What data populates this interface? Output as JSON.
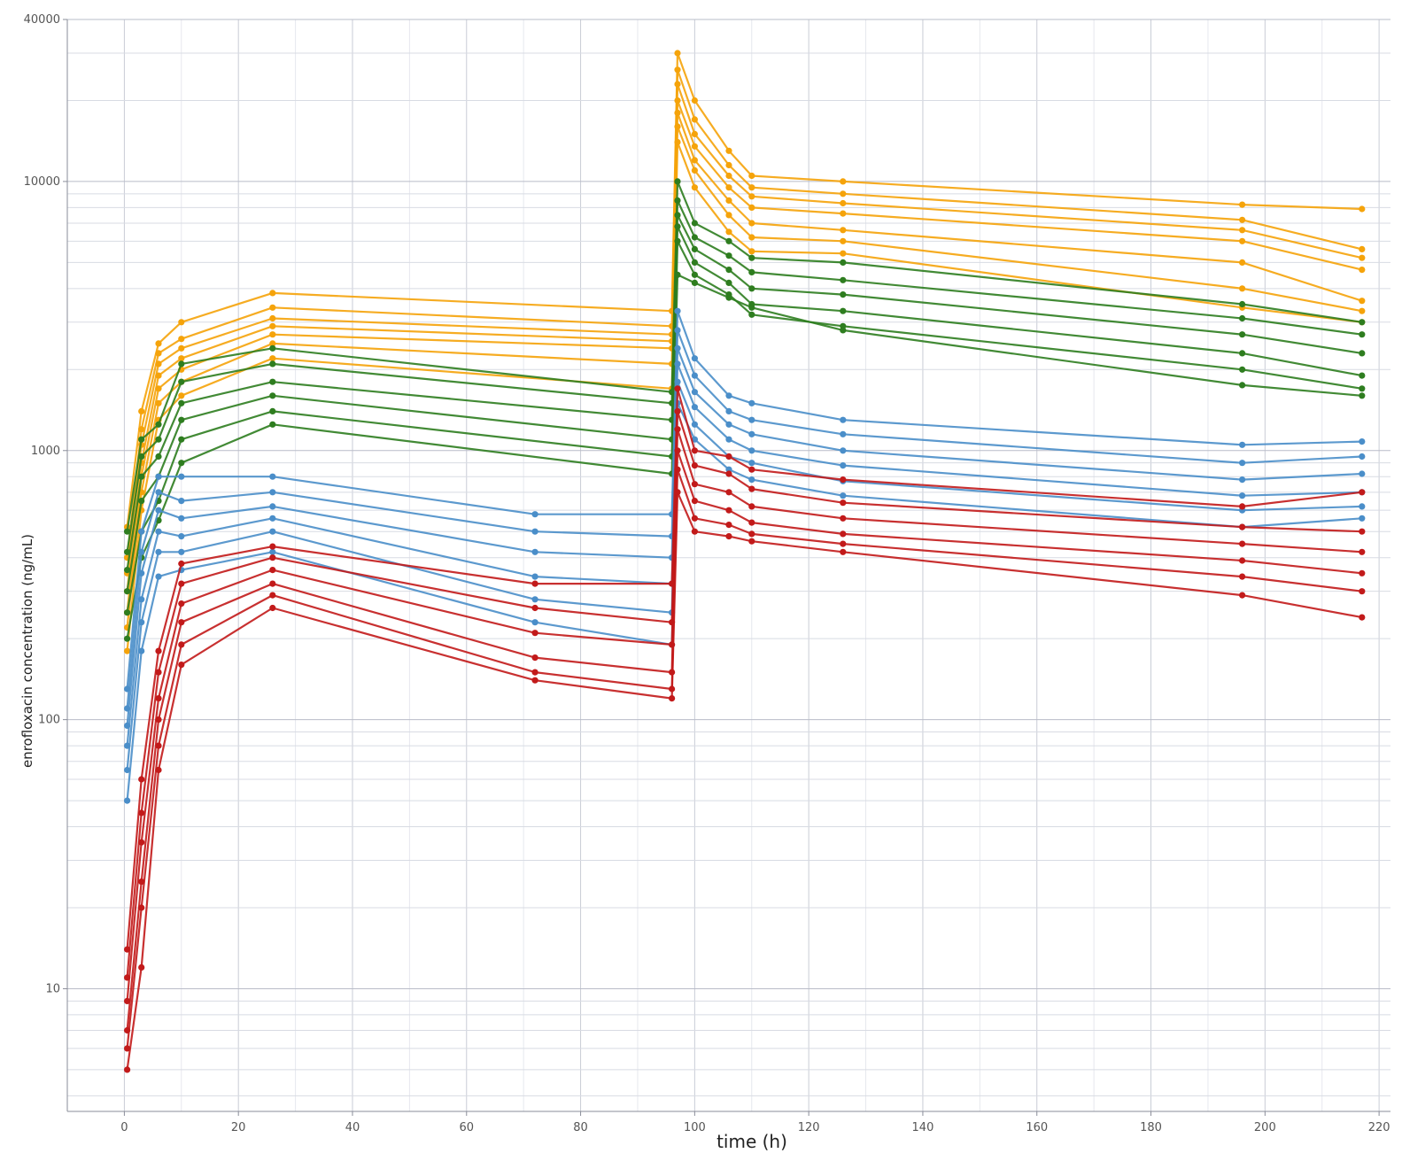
{
  "chart_data": {
    "type": "line",
    "title": "",
    "xlabel": "time (h)",
    "ylabel": "enrofloxacin concentration (ng/mL)",
    "xlim": [
      -10,
      222
    ],
    "ylim": [
      3.5,
      40000
    ],
    "y_scale": "log",
    "grid": true,
    "legend": "none",
    "x_ticks": [
      "0",
      "20",
      "40",
      "60",
      "80",
      "100",
      "120",
      "140",
      "160",
      "180",
      "200",
      "220"
    ],
    "x_tick_values": [
      0,
      20,
      40,
      60,
      80,
      100,
      120,
      140,
      160,
      180,
      200,
      220
    ],
    "y_ticks": [
      "40000",
      "10000",
      "1000",
      "100",
      "10"
    ],
    "y_tick_values": [
      40000,
      10000,
      1000,
      100,
      10
    ],
    "colors": {
      "orange": "#f5a30a",
      "green": "#2e7d1f",
      "blue": "#4a8ec9",
      "red": "#c21a1a"
    },
    "series": [
      {
        "color": "orange",
        "x": [
          0.5,
          3,
          6,
          10,
          26,
          96,
          97,
          100,
          106,
          110,
          126,
          196,
          217
        ],
        "y": [
          520,
          1400,
          2500,
          3000,
          3850,
          3300,
          30000,
          20000,
          13000,
          10500,
          10000,
          8200,
          7900
        ]
      },
      {
        "color": "orange",
        "x": [
          0.5,
          3,
          6,
          10,
          26,
          96,
          97,
          100,
          106,
          110,
          126,
          196,
          217
        ],
        "y": [
          400,
          1200,
          2300,
          2600,
          3400,
          2900,
          26000,
          17000,
          11500,
          9500,
          9000,
          7200,
          5600
        ]
      },
      {
        "color": "orange",
        "x": [
          0.5,
          3,
          6,
          10,
          26,
          96,
          97,
          100,
          106,
          110,
          126,
          196,
          217
        ],
        "y": [
          350,
          1050,
          2100,
          2400,
          3100,
          2700,
          23000,
          15000,
          10500,
          8800,
          8300,
          6600,
          5200
        ]
      },
      {
        "color": "orange",
        "x": [
          0.5,
          3,
          6,
          10,
          26,
          96,
          97,
          100,
          106,
          110,
          126,
          196,
          217
        ],
        "y": [
          300,
          900,
          1900,
          2200,
          2900,
          2550,
          20000,
          13500,
          9500,
          8000,
          7600,
          6000,
          4700
        ]
      },
      {
        "color": "orange",
        "x": [
          0.5,
          3,
          6,
          10,
          26,
          96,
          97,
          100,
          106,
          110,
          126,
          196,
          217
        ],
        "y": [
          250,
          800,
          1700,
          2000,
          2700,
          2400,
          18000,
          12000,
          8500,
          7000,
          6600,
          5000,
          3600
        ]
      },
      {
        "color": "orange",
        "x": [
          0.5,
          3,
          6,
          10,
          26,
          96,
          97,
          100,
          106,
          110,
          126,
          196,
          217
        ],
        "y": [
          220,
          700,
          1500,
          1800,
          2500,
          2100,
          16000,
          11000,
          7500,
          6200,
          6000,
          4000,
          3300
        ]
      },
      {
        "color": "orange",
        "x": [
          0.5,
          3,
          6,
          10,
          26,
          96,
          97,
          100,
          106,
          110,
          126,
          196,
          217
        ],
        "y": [
          180,
          600,
          1300,
          1600,
          2200,
          1700,
          14000,
          9500,
          6500,
          5500,
          5400,
          3400,
          3000
        ]
      },
      {
        "color": "green",
        "x": [
          0.5,
          3,
          6,
          10,
          26,
          96,
          97,
          100,
          106,
          110,
          126,
          196,
          217
        ],
        "y": [
          500,
          1100,
          1250,
          2100,
          2400,
          1650,
          10000,
          7000,
          6000,
          5200,
          5000,
          3500,
          3000
        ]
      },
      {
        "color": "green",
        "x": [
          0.5,
          3,
          6,
          10,
          26,
          96,
          97,
          100,
          106,
          110,
          126,
          196,
          217
        ],
        "y": [
          420,
          950,
          1100,
          1800,
          2100,
          1500,
          8500,
          6200,
          5300,
          4600,
          4300,
          3100,
          2700
        ]
      },
      {
        "color": "green",
        "x": [
          0.5,
          3,
          6,
          10,
          26,
          96,
          97,
          100,
          106,
          110,
          126,
          196,
          217
        ],
        "y": [
          360,
          800,
          950,
          1500,
          1800,
          1300,
          7500,
          5600,
          4700,
          4000,
          3800,
          2700,
          2300
        ]
      },
      {
        "color": "green",
        "x": [
          0.5,
          3,
          6,
          10,
          26,
          96,
          97,
          100,
          106,
          110,
          126,
          196,
          217
        ],
        "y": [
          300,
          650,
          800,
          1300,
          1600,
          1100,
          6800,
          5000,
          4200,
          3500,
          3300,
          2300,
          1900
        ]
      },
      {
        "color": "green",
        "x": [
          0.5,
          3,
          6,
          10,
          26,
          96,
          97,
          100,
          106,
          110,
          126,
          196,
          217
        ],
        "y": [
          250,
          500,
          650,
          1100,
          1400,
          950,
          6000,
          4500,
          3800,
          3200,
          2900,
          2000,
          1700
        ]
      },
      {
        "color": "green",
        "x": [
          0.5,
          3,
          6,
          10,
          26,
          96,
          97,
          100,
          106,
          110,
          126,
          196,
          217
        ],
        "y": [
          200,
          400,
          550,
          900,
          1250,
          820,
          4500,
          4200,
          3700,
          3400,
          2800,
          1750,
          1600
        ]
      },
      {
        "color": "blue",
        "x": [
          0.5,
          3,
          6,
          10,
          26,
          72,
          96,
          97,
          100,
          106,
          110,
          126,
          196,
          217
        ],
        "y": [
          130,
          500,
          800,
          800,
          800,
          580,
          580,
          3300,
          2200,
          1600,
          1500,
          1300,
          1050,
          1080
        ]
      },
      {
        "color": "blue",
        "x": [
          0.5,
          3,
          6,
          10,
          26,
          72,
          96,
          97,
          100,
          106,
          110,
          126,
          196,
          217
        ],
        "y": [
          110,
          420,
          700,
          650,
          700,
          500,
          480,
          2800,
          1900,
          1400,
          1300,
          1150,
          900,
          950
        ]
      },
      {
        "color": "blue",
        "x": [
          0.5,
          3,
          6,
          10,
          26,
          72,
          96,
          97,
          100,
          106,
          110,
          126,
          196,
          217
        ],
        "y": [
          95,
          350,
          600,
          560,
          620,
          420,
          400,
          2400,
          1650,
          1250,
          1150,
          1000,
          780,
          820
        ]
      },
      {
        "color": "blue",
        "x": [
          0.5,
          3,
          6,
          10,
          26,
          72,
          96,
          97,
          100,
          106,
          110,
          126,
          196,
          217
        ],
        "y": [
          80,
          280,
          500,
          480,
          560,
          340,
          320,
          2100,
          1450,
          1100,
          1000,
          880,
          680,
          700
        ]
      },
      {
        "color": "blue",
        "x": [
          0.5,
          3,
          6,
          10,
          26,
          72,
          96,
          97,
          100,
          106,
          110,
          126,
          196,
          217
        ],
        "y": [
          65,
          230,
          420,
          420,
          500,
          280,
          250,
          1800,
          1250,
          950,
          900,
          770,
          600,
          620
        ]
      },
      {
        "color": "blue",
        "x": [
          0.5,
          3,
          6,
          10,
          26,
          72,
          96,
          97,
          100,
          106,
          110,
          126,
          196,
          217
        ],
        "y": [
          50,
          180,
          340,
          360,
          420,
          230,
          190,
          1500,
          1100,
          850,
          780,
          680,
          520,
          560
        ]
      },
      {
        "color": "red",
        "x": [
          0.5,
          3,
          6,
          10,
          26,
          72,
          96,
          97,
          100,
          106,
          110,
          126,
          196,
          217
        ],
        "y": [
          14,
          60,
          180,
          380,
          440,
          320,
          320,
          1700,
          1000,
          950,
          850,
          780,
          620,
          700
        ]
      },
      {
        "color": "red",
        "x": [
          0.5,
          3,
          6,
          10,
          26,
          72,
          96,
          97,
          100,
          106,
          110,
          126,
          196,
          217
        ],
        "y": [
          11,
          45,
          150,
          320,
          400,
          260,
          230,
          1400,
          880,
          820,
          720,
          640,
          520,
          500
        ]
      },
      {
        "color": "red",
        "x": [
          0.5,
          3,
          6,
          10,
          26,
          72,
          96,
          97,
          100,
          106,
          110,
          126,
          196,
          217
        ],
        "y": [
          9,
          35,
          120,
          270,
          360,
          210,
          190,
          1200,
          750,
          700,
          620,
          560,
          450,
          420
        ]
      },
      {
        "color": "red",
        "x": [
          0.5,
          3,
          6,
          10,
          26,
          72,
          96,
          97,
          100,
          106,
          110,
          126,
          196,
          217
        ],
        "y": [
          7,
          25,
          100,
          230,
          320,
          170,
          150,
          1000,
          650,
          600,
          540,
          490,
          390,
          350
        ]
      },
      {
        "color": "red",
        "x": [
          0.5,
          3,
          6,
          10,
          26,
          72,
          96,
          97,
          100,
          106,
          110,
          126,
          196,
          217
        ],
        "y": [
          6,
          20,
          80,
          190,
          290,
          150,
          130,
          850,
          560,
          530,
          490,
          450,
          340,
          300
        ]
      },
      {
        "color": "red",
        "x": [
          0.5,
          3,
          6,
          10,
          26,
          72,
          96,
          97,
          100,
          106,
          110,
          126,
          196,
          217
        ],
        "y": [
          5,
          12,
          65,
          160,
          260,
          140,
          120,
          700,
          500,
          480,
          460,
          420,
          290,
          240
        ]
      }
    ]
  }
}
